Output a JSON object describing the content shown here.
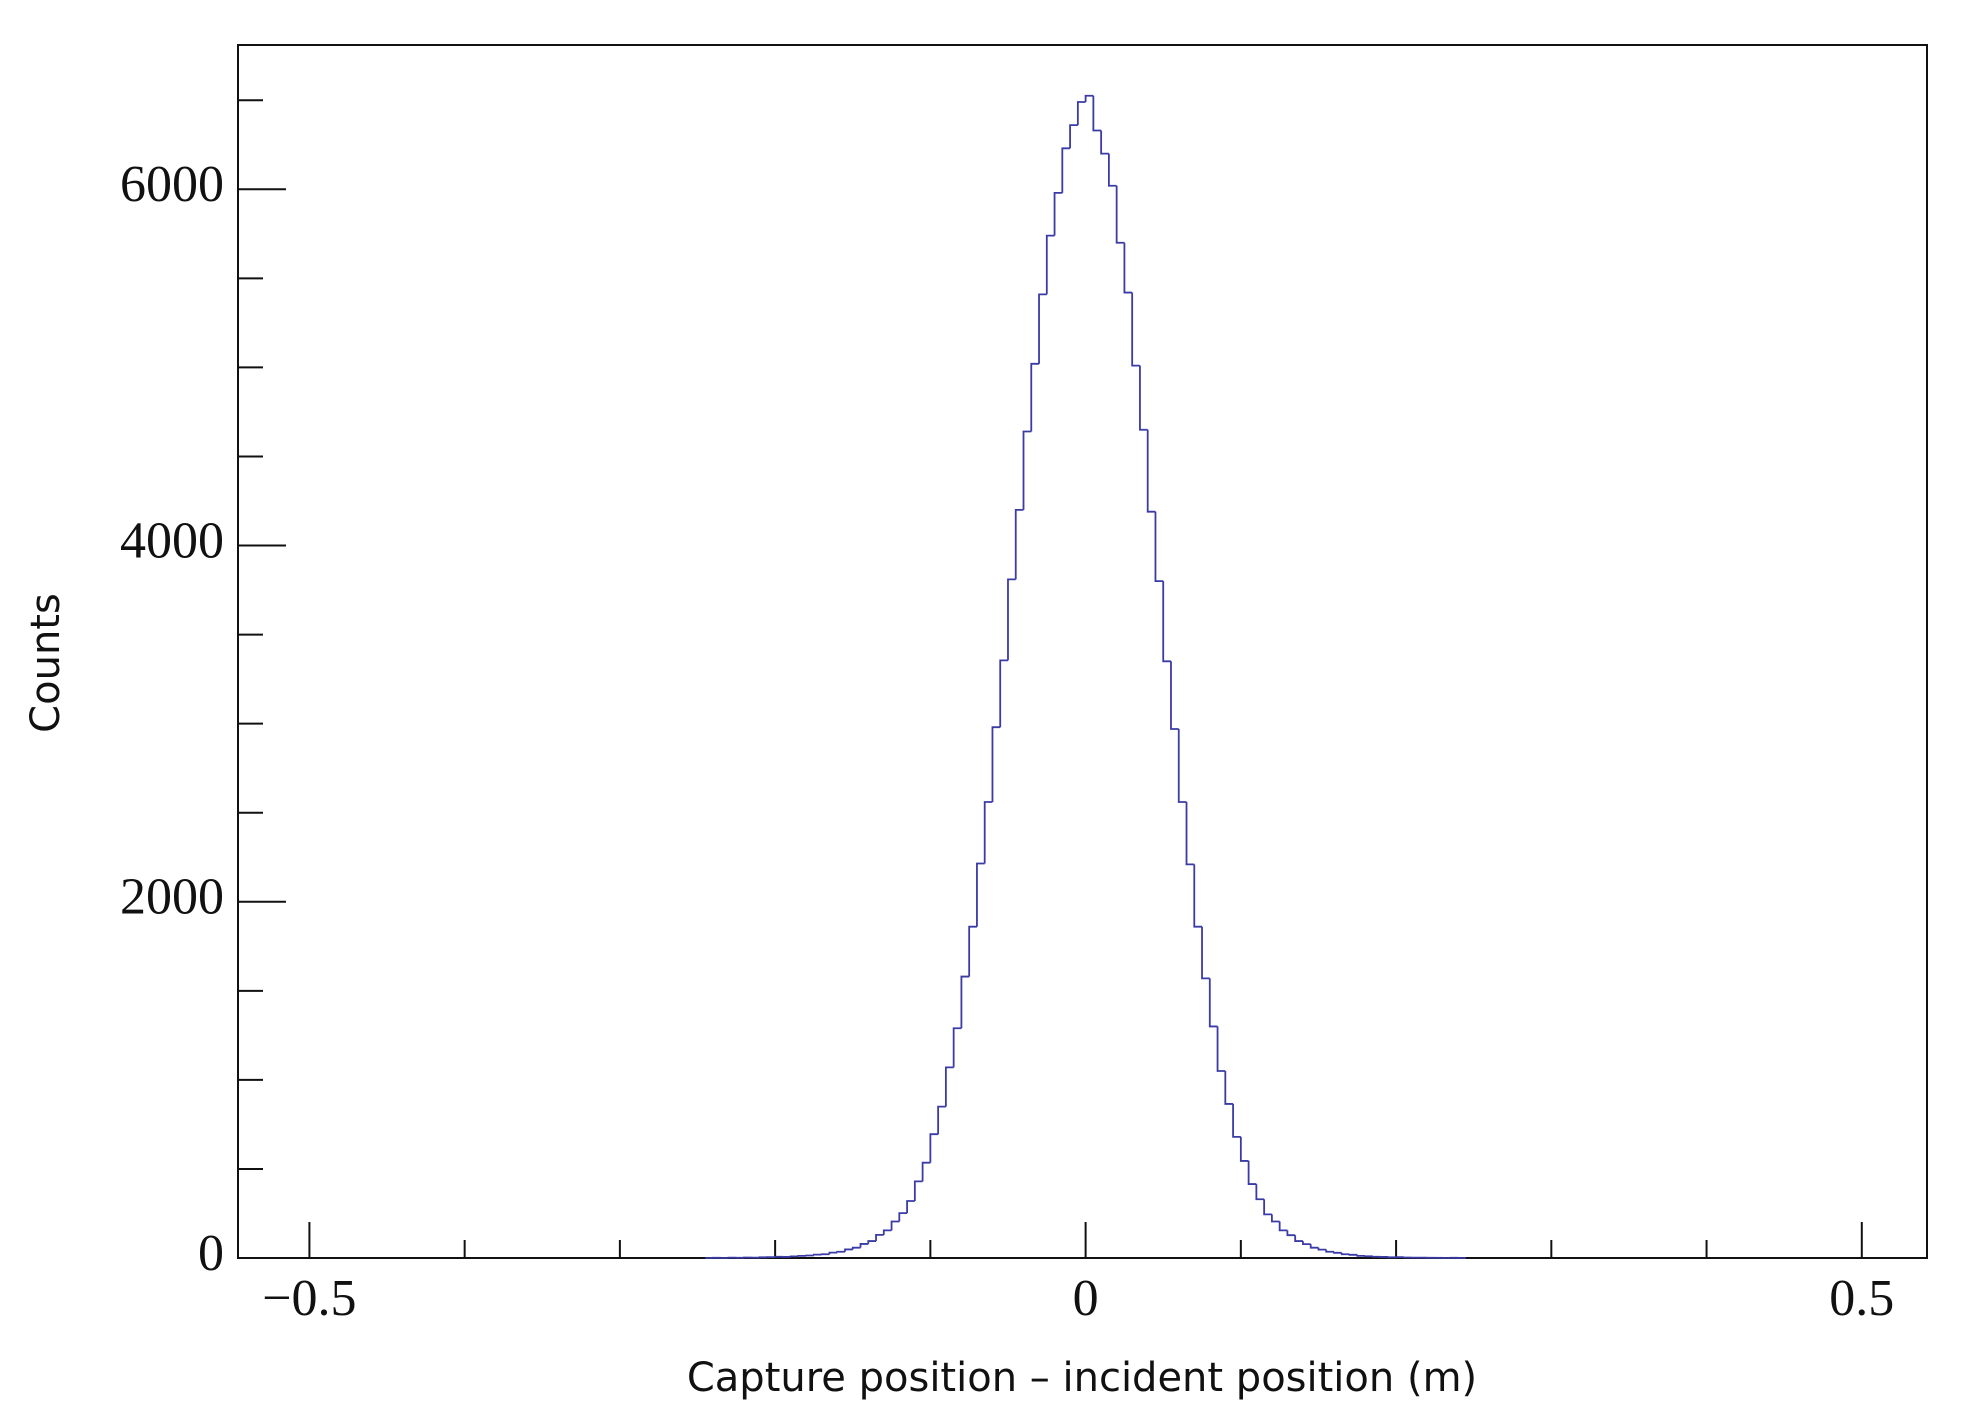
{
  "chart_data": {
    "type": "histogram",
    "x_label": "Capture position – incident position (m)",
    "y_label": "Counts",
    "color": "#3b3ba6",
    "bins": [
      -0.245,
      -0.24,
      -0.235,
      -0.23,
      -0.225,
      -0.22,
      -0.215,
      -0.21,
      -0.205,
      -0.2,
      -0.195,
      -0.19,
      -0.185,
      -0.18,
      -0.175,
      -0.17,
      -0.165,
      -0.16,
      -0.155,
      -0.15,
      -0.145,
      -0.14,
      -0.135,
      -0.13,
      -0.125,
      -0.12,
      -0.115,
      -0.11,
      -0.105,
      -0.1,
      -0.095,
      -0.09,
      -0.085,
      -0.08,
      -0.075,
      -0.07,
      -0.065,
      -0.06,
      -0.055,
      -0.05,
      -0.045,
      -0.04,
      -0.035,
      -0.03,
      -0.025,
      -0.02,
      -0.015,
      -0.01,
      -0.005,
      0,
      0.005,
      0.01,
      0.015,
      0.02,
      0.025,
      0.03,
      0.035,
      0.04,
      0.045,
      0.05,
      0.055,
      0.06,
      0.065,
      0.07,
      0.075,
      0.08,
      0.085,
      0.09,
      0.095,
      0.1,
      0.105,
      0.11,
      0.115,
      0.12,
      0.125,
      0.13,
      0.135,
      0.14,
      0.145,
      0.15,
      0.155,
      0.16,
      0.165,
      0.17,
      0.175,
      0.18,
      0.185,
      0.19,
      0.195,
      0.2,
      0.205,
      0.21,
      0.215,
      0.22,
      0.225,
      0.23,
      0.235,
      0.24,
      0.245
    ],
    "values": [
      0,
      1,
      0,
      2,
      1,
      3,
      2,
      4,
      5,
      7,
      6,
      9,
      12,
      14,
      19,
      21,
      30,
      35,
      48,
      58,
      79,
      95,
      130,
      155,
      205,
      252,
      320,
      430,
      535,
      695,
      850,
      1070,
      1290,
      1580,
      1860,
      2215,
      2560,
      2980,
      3355,
      3810,
      4200,
      4640,
      5020,
      5410,
      5740,
      5980,
      6230,
      6360,
      6490,
      6525,
      6330,
      6200,
      6020,
      5700,
      5420,
      5010,
      4650,
      4190,
      3800,
      3350,
      2970,
      2560,
      2210,
      1860,
      1570,
      1300,
      1050,
      865,
      680,
      545,
      415,
      330,
      245,
      205,
      155,
      128,
      95,
      78,
      58,
      47,
      35,
      29,
      21,
      18,
      12,
      10,
      7,
      6,
      4,
      5,
      3,
      2,
      2,
      1,
      1,
      0,
      1,
      0
    ],
    "xlim": [
      -0.546,
      0.542
    ],
    "xticks": [
      {
        "value": -0.5,
        "label": "−0.5"
      },
      0,
      0.5
    ],
    "xminorticks": [
      -0.4,
      -0.3,
      -0.2,
      -0.1,
      0.1,
      0.2,
      0.3,
      0.4
    ],
    "ylim": [
      0,
      6810
    ],
    "yticks": [
      0,
      2000,
      4000,
      6000
    ],
    "yminorticks": [
      500,
      1000,
      1500,
      2500,
      3000,
      3500,
      4500,
      5000,
      5500,
      6500
    ]
  }
}
